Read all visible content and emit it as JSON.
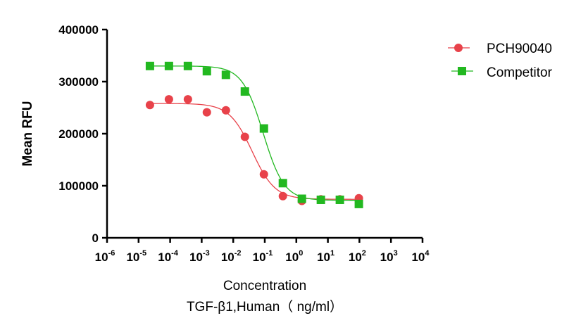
{
  "chart_data": {
    "type": "scatter",
    "xscale": "log",
    "xlim": [
      1e-06,
      10000.0
    ],
    "ylim": [
      0,
      400000
    ],
    "xticks": [
      -6,
      -5,
      -4,
      -3,
      -2,
      -1,
      0,
      1,
      2,
      3,
      4
    ],
    "yticks": [
      0,
      100000,
      200000,
      300000,
      400000
    ],
    "ytick_labels": [
      "0",
      "100000",
      "200000",
      "300000",
      "400000"
    ],
    "ylabel": "Mean RFU",
    "xlabel_line1": "Concentration",
    "xlabel_line2": "TGF-β1,Human（ ng/ml）",
    "legend_position": "top-right",
    "series": [
      {
        "name": "PCH90040",
        "color": "#e8424a",
        "marker": "circle",
        "x": [
          2.29e-05,
          9.15e-05,
          0.000366,
          0.00146,
          0.00586,
          0.0234,
          0.0938,
          0.375,
          1.5,
          6.0,
          24.0,
          96.0
        ],
        "y": [
          255000,
          266000,
          266000,
          241000,
          245000,
          194000,
          122000,
          80000,
          71000,
          74000,
          74000,
          76000
        ],
        "fit": {
          "bottom": 74000,
          "top": 258000,
          "logEC50": -1.4,
          "hill": 1.2
        }
      },
      {
        "name": "Competitor",
        "color": "#22b820",
        "marker": "square",
        "x": [
          2.29e-05,
          9.15e-05,
          0.000366,
          0.00146,
          0.00586,
          0.0234,
          0.0938,
          0.375,
          1.5,
          6.0,
          24.0,
          96.0
        ],
        "y": [
          330000,
          330000,
          330000,
          320000,
          313000,
          281000,
          210000,
          105000,
          75000,
          73000,
          73000,
          65000
        ],
        "fit": {
          "bottom": 72000,
          "top": 330000,
          "logEC50": -1.05,
          "hill": 1.3
        }
      }
    ]
  }
}
